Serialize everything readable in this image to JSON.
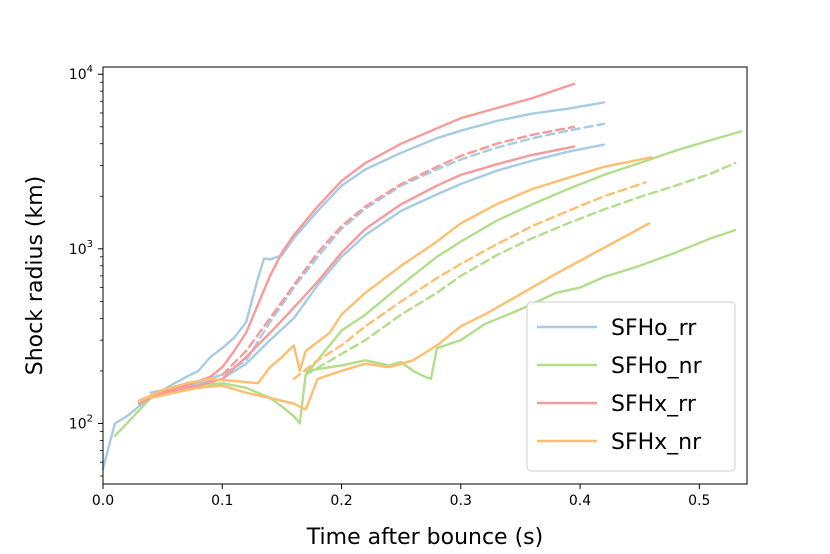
{
  "chart_data": {
    "type": "line",
    "title": "",
    "xlabel": "Time after bounce (s)",
    "ylabel": "Shock radius (km)",
    "xlim": [
      0.0,
      0.54
    ],
    "ylim": [
      45,
      11000
    ],
    "yscale": "log",
    "grid": false,
    "legend_position": "bottom-right",
    "x_ticks": [
      {
        "value": 0.0,
        "label": "0.0"
      },
      {
        "value": 0.1,
        "label": "0.1"
      },
      {
        "value": 0.2,
        "label": "0.2"
      },
      {
        "value": 0.3,
        "label": "0.3"
      },
      {
        "value": 0.4,
        "label": "0.4"
      },
      {
        "value": 0.5,
        "label": "0.5"
      }
    ],
    "y_ticks": [
      {
        "value": 100,
        "base": "10",
        "exp": "2"
      },
      {
        "value": 1000,
        "base": "10",
        "exp": "3"
      },
      {
        "value": 10000,
        "base": "10",
        "exp": "4"
      }
    ],
    "legend": [
      {
        "label": "SFHo_rr",
        "color": "#a6cce3"
      },
      {
        "label": "SFHo_nr",
        "color": "#b2de8a"
      },
      {
        "label": "SFHx_rr",
        "color": "#f79a9a"
      },
      {
        "label": "SFHx_nr",
        "color": "#fdbf6f"
      }
    ],
    "series": [
      {
        "group": "SFHo_rr",
        "color": "#a6cce3",
        "dash": "solid",
        "x": [
          0.0,
          0.01,
          0.02,
          0.03,
          0.04,
          0.05,
          0.06,
          0.07,
          0.08,
          0.09,
          0.1,
          0.11,
          0.12,
          0.13,
          0.135,
          0.14,
          0.15,
          0.16,
          0.18,
          0.2,
          0.22,
          0.25,
          0.28,
          0.3,
          0.33,
          0.36,
          0.39,
          0.42
        ],
        "y": [
          55,
          100,
          110,
          125,
          140,
          155,
          170,
          185,
          200,
          240,
          270,
          310,
          380,
          680,
          880,
          870,
          920,
          1150,
          1650,
          2300,
          2850,
          3550,
          4300,
          4750,
          5400,
          5950,
          6350,
          6900
        ]
      },
      {
        "group": "SFHo_rr",
        "color": "#a6cce3",
        "dash": "dashed",
        "x": [
          0.06,
          0.08,
          0.1,
          0.12,
          0.14,
          0.16,
          0.18,
          0.2,
          0.22,
          0.25,
          0.28,
          0.3,
          0.33,
          0.36,
          0.39,
          0.42
        ],
        "y": [
          160,
          175,
          190,
          230,
          380,
          600,
          900,
          1300,
          1700,
          2300,
          2850,
          3250,
          3800,
          4300,
          4750,
          5200
        ]
      },
      {
        "group": "SFHo_rr",
        "color": "#a6cce3",
        "dash": "solid",
        "x": [
          0.04,
          0.06,
          0.08,
          0.1,
          0.12,
          0.14,
          0.16,
          0.18,
          0.2,
          0.22,
          0.25,
          0.28,
          0.3,
          0.33,
          0.36,
          0.39,
          0.42
        ],
        "y": [
          150,
          160,
          170,
          180,
          220,
          300,
          400,
          620,
          900,
          1200,
          1650,
          2050,
          2350,
          2800,
          3200,
          3600,
          3950
        ]
      },
      {
        "group": "SFHo_nr",
        "color": "#b2de8a",
        "dash": "solid",
        "x": [
          0.01,
          0.02,
          0.04,
          0.06,
          0.08,
          0.1,
          0.12,
          0.14,
          0.15,
          0.16,
          0.165,
          0.17,
          0.2,
          0.22,
          0.25,
          0.28,
          0.3,
          0.33,
          0.36,
          0.39,
          0.42,
          0.45,
          0.48,
          0.51,
          0.535
        ],
        "y": [
          85,
          100,
          140,
          155,
          165,
          170,
          160,
          140,
          125,
          110,
          100,
          190,
          340,
          420,
          620,
          900,
          1100,
          1450,
          1800,
          2200,
          2650,
          3100,
          3650,
          4200,
          4700
        ]
      },
      {
        "group": "SFHo_nr",
        "color": "#b2de8a",
        "dash": "dashed",
        "x": [
          0.17,
          0.2,
          0.22,
          0.25,
          0.28,
          0.3,
          0.33,
          0.36,
          0.39,
          0.42,
          0.45,
          0.48,
          0.51,
          0.53
        ],
        "y": [
          190,
          250,
          300,
          420,
          560,
          700,
          920,
          1150,
          1400,
          1680,
          1980,
          2300,
          2700,
          3100
        ]
      },
      {
        "group": "SFHo_nr",
        "color": "#b2de8a",
        "dash": "solid",
        "x": [
          0.17,
          0.2,
          0.22,
          0.24,
          0.25,
          0.26,
          0.27,
          0.275,
          0.28,
          0.3,
          0.32,
          0.35,
          0.38,
          0.4,
          0.42,
          0.45,
          0.48,
          0.51,
          0.53
        ],
        "y": [
          200,
          215,
          230,
          215,
          225,
          200,
          185,
          180,
          270,
          300,
          370,
          450,
          560,
          600,
          690,
          800,
          950,
          1150,
          1280
        ]
      },
      {
        "group": "SFHx_rr",
        "color": "#f79a9a",
        "dash": "solid",
        "x": [
          0.03,
          0.05,
          0.07,
          0.09,
          0.1,
          0.11,
          0.12,
          0.13,
          0.14,
          0.15,
          0.16,
          0.18,
          0.2,
          0.22,
          0.25,
          0.28,
          0.3,
          0.33,
          0.36,
          0.395
        ],
        "y": [
          130,
          150,
          165,
          185,
          210,
          260,
          330,
          480,
          700,
          950,
          1200,
          1750,
          2450,
          3100,
          4000,
          4900,
          5600,
          6400,
          7300,
          8800
        ]
      },
      {
        "group": "SFHx_rr",
        "color": "#f79a9a",
        "dash": "dashed",
        "x": [
          0.1,
          0.12,
          0.14,
          0.16,
          0.18,
          0.2,
          0.22,
          0.25,
          0.28,
          0.3,
          0.33,
          0.36,
          0.395
        ],
        "y": [
          190,
          260,
          400,
          620,
          950,
          1350,
          1750,
          2350,
          2950,
          3400,
          4000,
          4500,
          5000
        ]
      },
      {
        "group": "SFHx_rr",
        "color": "#f79a9a",
        "dash": "solid",
        "x": [
          0.05,
          0.08,
          0.1,
          0.12,
          0.14,
          0.16,
          0.18,
          0.2,
          0.22,
          0.25,
          0.28,
          0.3,
          0.33,
          0.36,
          0.395
        ],
        "y": [
          150,
          165,
          180,
          240,
          330,
          460,
          650,
          950,
          1300,
          1800,
          2300,
          2650,
          3050,
          3450,
          3850
        ]
      },
      {
        "group": "SFHx_nr",
        "color": "#fdbf6f",
        "dash": "solid",
        "x": [
          0.03,
          0.05,
          0.07,
          0.09,
          0.11,
          0.13,
          0.14,
          0.15,
          0.16,
          0.165,
          0.17,
          0.19,
          0.2,
          0.22,
          0.25,
          0.28,
          0.3,
          0.33,
          0.36,
          0.39,
          0.42,
          0.46
        ],
        "y": [
          135,
          155,
          170,
          180,
          175,
          170,
          210,
          240,
          280,
          200,
          260,
          330,
          420,
          560,
          800,
          1100,
          1400,
          1800,
          2200,
          2550,
          2950,
          3350
        ]
      },
      {
        "group": "SFHx_nr",
        "color": "#fdbf6f",
        "dash": "dashed",
        "x": [
          0.16,
          0.18,
          0.2,
          0.22,
          0.25,
          0.28,
          0.3,
          0.33,
          0.36,
          0.39,
          0.42,
          0.455
        ],
        "y": [
          180,
          230,
          280,
          360,
          500,
          680,
          820,
          1060,
          1350,
          1650,
          2000,
          2400
        ]
      },
      {
        "group": "SFHx_nr",
        "color": "#fdbf6f",
        "dash": "solid",
        "x": [
          0.04,
          0.06,
          0.08,
          0.1,
          0.12,
          0.14,
          0.16,
          0.17,
          0.18,
          0.2,
          0.22,
          0.24,
          0.26,
          0.28,
          0.3,
          0.32,
          0.35,
          0.38,
          0.41,
          0.435,
          0.458
        ],
        "y": [
          140,
          150,
          160,
          165,
          150,
          140,
          130,
          120,
          180,
          200,
          220,
          210,
          230,
          280,
          360,
          420,
          550,
          720,
          930,
          1150,
          1400
        ]
      }
    ]
  }
}
